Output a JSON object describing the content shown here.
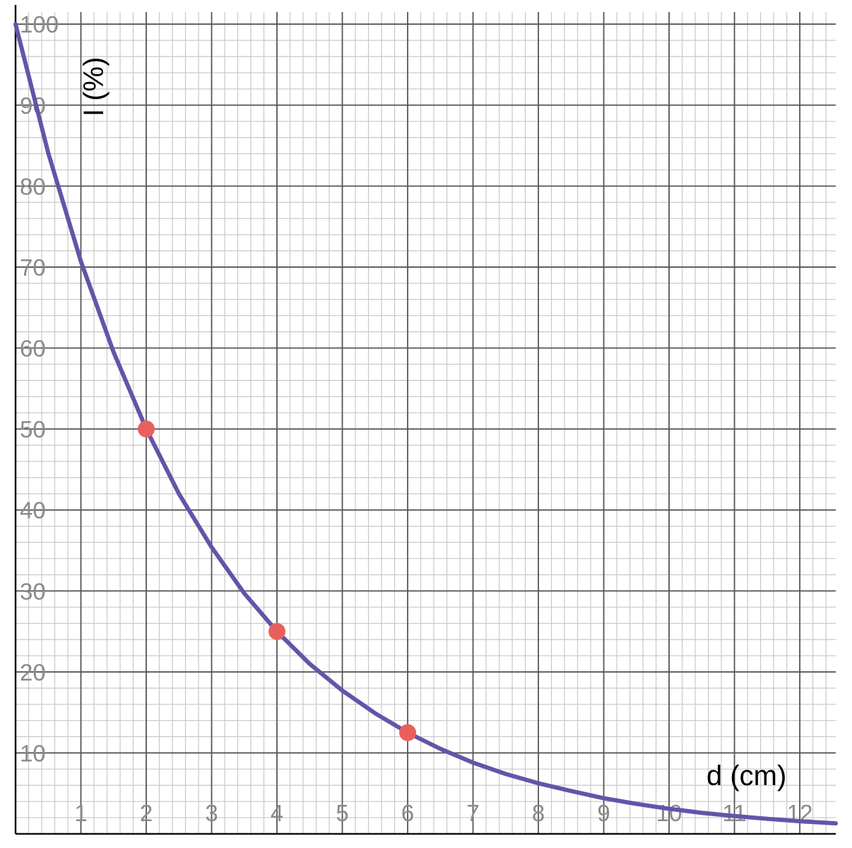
{
  "chart_data": {
    "type": "line",
    "title": "",
    "xlabel": "d (cm)",
    "ylabel": "I (%)",
    "xlim": [
      0,
      12.55
    ],
    "ylim": [
      0,
      101.5
    ],
    "x_ticks": [
      "1",
      "2",
      "3",
      "4",
      "5",
      "6",
      "7",
      "8",
      "9",
      "10",
      "11",
      "12"
    ],
    "y_ticks": [
      "10",
      "20",
      "30",
      "40",
      "50",
      "60",
      "70",
      "80",
      "90",
      "100"
    ],
    "grid": true,
    "legend": "none",
    "curve": {
      "color": "#6653a8",
      "x": [
        0,
        0.5,
        1,
        1.5,
        2,
        2.5,
        3,
        3.5,
        4,
        4.5,
        5,
        5.5,
        6,
        6.5,
        7,
        7.5,
        8,
        8.5,
        9,
        9.5,
        10,
        10.5,
        11,
        11.5,
        12,
        12.55
      ],
      "y": [
        100,
        84.1,
        70.7,
        59.5,
        50,
        42.0,
        35.4,
        29.7,
        25.0,
        21.0,
        17.7,
        14.9,
        12.5,
        10.5,
        8.8,
        7.4,
        6.25,
        5.3,
        4.4,
        3.7,
        3.1,
        2.6,
        2.2,
        1.86,
        1.56,
        1.3
      ]
    },
    "points": {
      "color": "#e8605c",
      "x": [
        2,
        4,
        6
      ],
      "y": [
        50,
        25,
        12.5
      ]
    }
  }
}
